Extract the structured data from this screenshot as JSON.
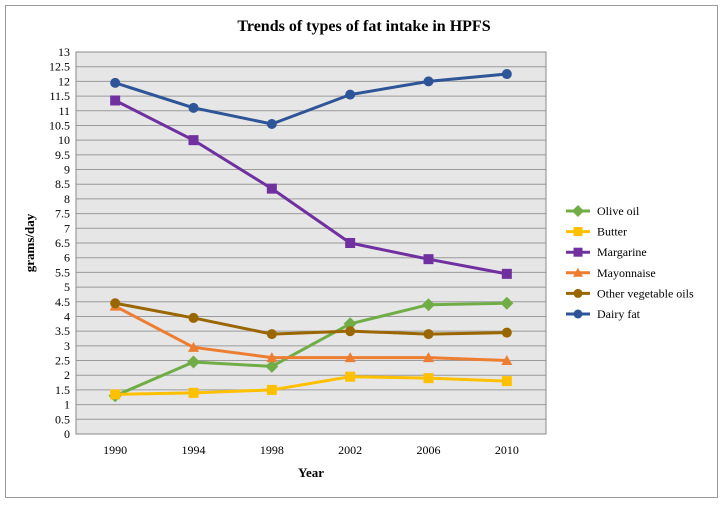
{
  "chart_data": {
    "type": "line",
    "title": "Trends of types of fat intake in HPFS",
    "xlabel": "Year",
    "ylabel": "grams/day",
    "categories": [
      "1990",
      "1994",
      "1998",
      "2002",
      "2006",
      "2010"
    ],
    "ylim": [
      0,
      13
    ],
    "ytick_step": 0.5,
    "grid": true,
    "legend_position": "right",
    "series": [
      {
        "name": "Olive oil",
        "color": "#70ad47",
        "marker": "diamond",
        "values": [
          1.3,
          2.45,
          2.3,
          3.75,
          4.4,
          4.45
        ]
      },
      {
        "name": "Butter",
        "color": "#ffc000",
        "marker": "square",
        "values": [
          1.35,
          1.4,
          1.5,
          1.95,
          1.9,
          1.8
        ]
      },
      {
        "name": "Margarine",
        "color": "#7030a0",
        "marker": "square",
        "values": [
          11.35,
          10.0,
          8.35,
          6.5,
          5.95,
          5.45
        ]
      },
      {
        "name": "Mayonnaise",
        "color": "#ed7d31",
        "marker": "triangle",
        "values": [
          4.35,
          2.95,
          2.6,
          2.6,
          2.6,
          2.5
        ]
      },
      {
        "name": "Other vegetable oils",
        "color": "#996600",
        "marker": "circle",
        "values": [
          4.45,
          3.95,
          3.4,
          3.5,
          3.4,
          3.45
        ]
      },
      {
        "name": "Dairy fat",
        "color": "#2e5597",
        "marker": "circle",
        "values": [
          11.95,
          11.1,
          10.55,
          11.55,
          12.0,
          12.25
        ]
      }
    ]
  }
}
